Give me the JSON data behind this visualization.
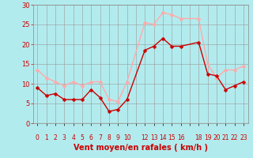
{
  "xlabel": "Vent moyen/en rafales ( km/h )",
  "xlabel_color": "#cc0000",
  "background_color": "#b2ebee",
  "grid_color": "#999999",
  "ylim": [
    0,
    30
  ],
  "yticks": [
    0,
    5,
    10,
    15,
    20,
    25,
    30
  ],
  "x_labels": [
    "0",
    "1",
    "2",
    "3",
    "4",
    "5",
    "6",
    "7",
    "8",
    "9",
    "10",
    "",
    "12",
    "13",
    "14",
    "15",
    "16",
    "",
    "18",
    "19",
    "20",
    "21",
    "22",
    "23"
  ],
  "x_positions": [
    0,
    1,
    2,
    3,
    4,
    5,
    6,
    7,
    8,
    9,
    10,
    11,
    12,
    13,
    14,
    15,
    16,
    17,
    18,
    19,
    20,
    21,
    22,
    23
  ],
  "wind_mean_x": [
    0,
    1,
    2,
    3,
    4,
    5,
    6,
    7,
    8,
    9,
    10,
    12,
    13,
    14,
    15,
    16,
    18,
    19,
    20,
    21,
    22,
    23
  ],
  "wind_mean_y": [
    9,
    7,
    7.5,
    6,
    6,
    6,
    8.5,
    6.5,
    3,
    3.5,
    6,
    18.5,
    19.5,
    21.5,
    19.5,
    19.5,
    20.5,
    12.5,
    12,
    8.5,
    9.5,
    10.5
  ],
  "wind_gust_x": [
    0,
    1,
    2,
    3,
    4,
    5,
    6,
    7,
    8,
    9,
    10,
    12,
    13,
    14,
    15,
    16,
    18,
    19,
    20,
    21,
    22,
    23
  ],
  "wind_gust_y": [
    13.5,
    11.5,
    10.5,
    9.5,
    10.5,
    9.5,
    10.5,
    10.5,
    6,
    5.5,
    10.5,
    25.5,
    25,
    28,
    27.5,
    26.5,
    26.5,
    15,
    11.5,
    13.5,
    13.5,
    14.5
  ],
  "mean_color": "#cc0000",
  "gust_color": "#ffaaaa",
  "markersize": 2.5,
  "linewidth": 1.0
}
